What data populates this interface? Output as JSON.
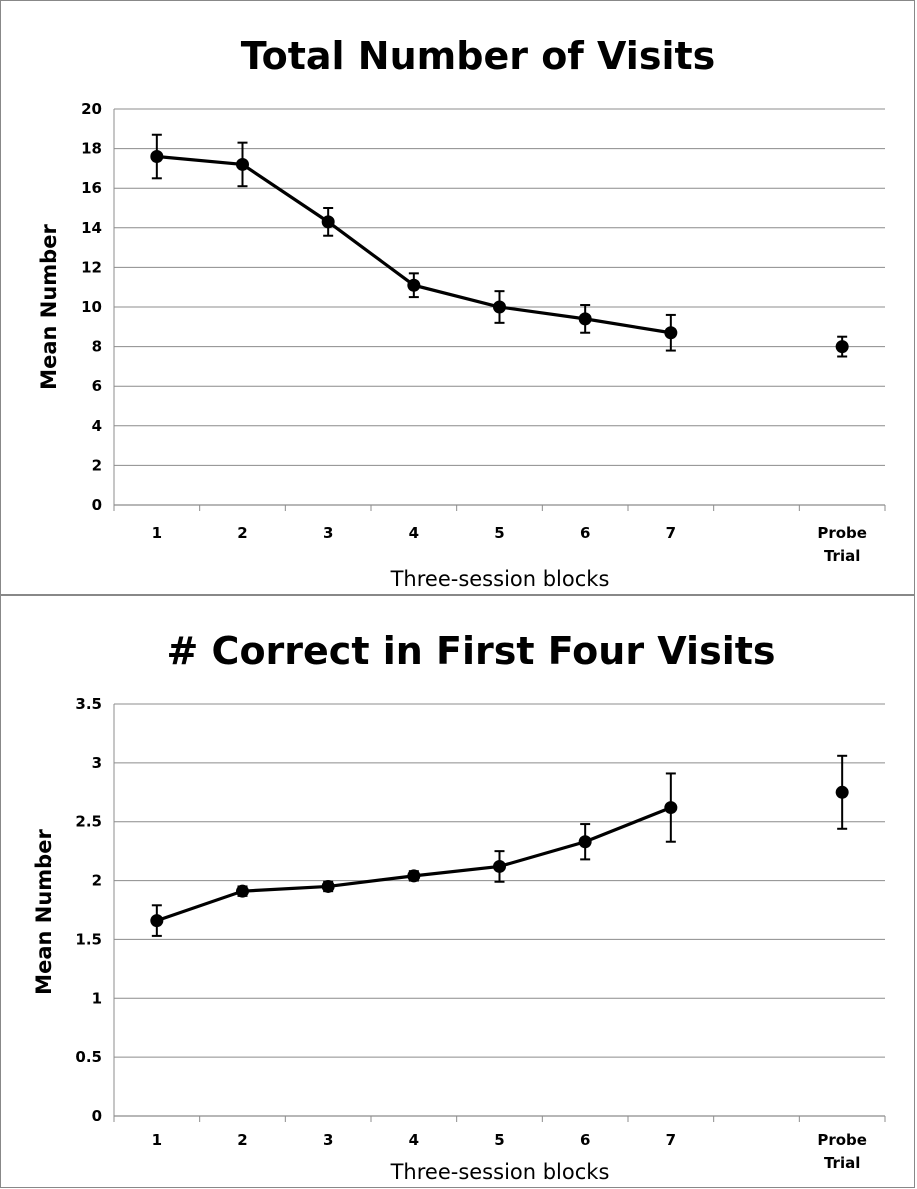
{
  "chart_data": [
    {
      "type": "line",
      "title": "Total Number of Visits",
      "xlabel": "Three-session blocks",
      "ylabel": "Mean Number",
      "ylim": [
        0,
        20
      ],
      "yticks": [
        "0",
        "2",
        "4",
        "6",
        "8",
        "10",
        "12",
        "14",
        "16",
        "18",
        "20"
      ],
      "categories": [
        "1",
        "2",
        "3",
        "4",
        "5",
        "6",
        "7",
        "",
        "Probe Trial"
      ],
      "grid": true,
      "series": [
        {
          "values": [
            17.6,
            17.2,
            14.3,
            11.1,
            10.0,
            9.4,
            8.7,
            null,
            null
          ],
          "errors": [
            1.1,
            1.1,
            0.7,
            0.6,
            0.8,
            0.7,
            0.9,
            null,
            null
          ]
        },
        {
          "values": [
            null,
            null,
            null,
            null,
            null,
            null,
            null,
            null,
            8.0
          ],
          "errors": [
            null,
            null,
            null,
            null,
            null,
            null,
            null,
            null,
            0.5
          ]
        }
      ]
    },
    {
      "type": "line",
      "title": "# Correct in First Four Visits",
      "xlabel": "Three-session blocks",
      "ylabel": "Mean Number",
      "ylim": [
        0,
        3.5
      ],
      "yticks": [
        "0",
        "0.5",
        "1",
        "1.5",
        "2",
        "2.5",
        "3",
        "3.5"
      ],
      "categories": [
        "1",
        "2",
        "3",
        "4",
        "5",
        "6",
        "7",
        "",
        "Probe Trial"
      ],
      "grid": true,
      "series": [
        {
          "values": [
            1.66,
            1.91,
            1.95,
            2.04,
            2.12,
            2.33,
            2.62,
            null,
            null
          ],
          "errors": [
            0.13,
            0.04,
            0.04,
            0.04,
            0.13,
            0.15,
            0.29,
            null,
            null
          ]
        },
        {
          "values": [
            null,
            null,
            null,
            null,
            null,
            null,
            null,
            null,
            2.75
          ],
          "errors": [
            null,
            null,
            null,
            null,
            null,
            null,
            null,
            null,
            0.31
          ]
        }
      ]
    }
  ]
}
